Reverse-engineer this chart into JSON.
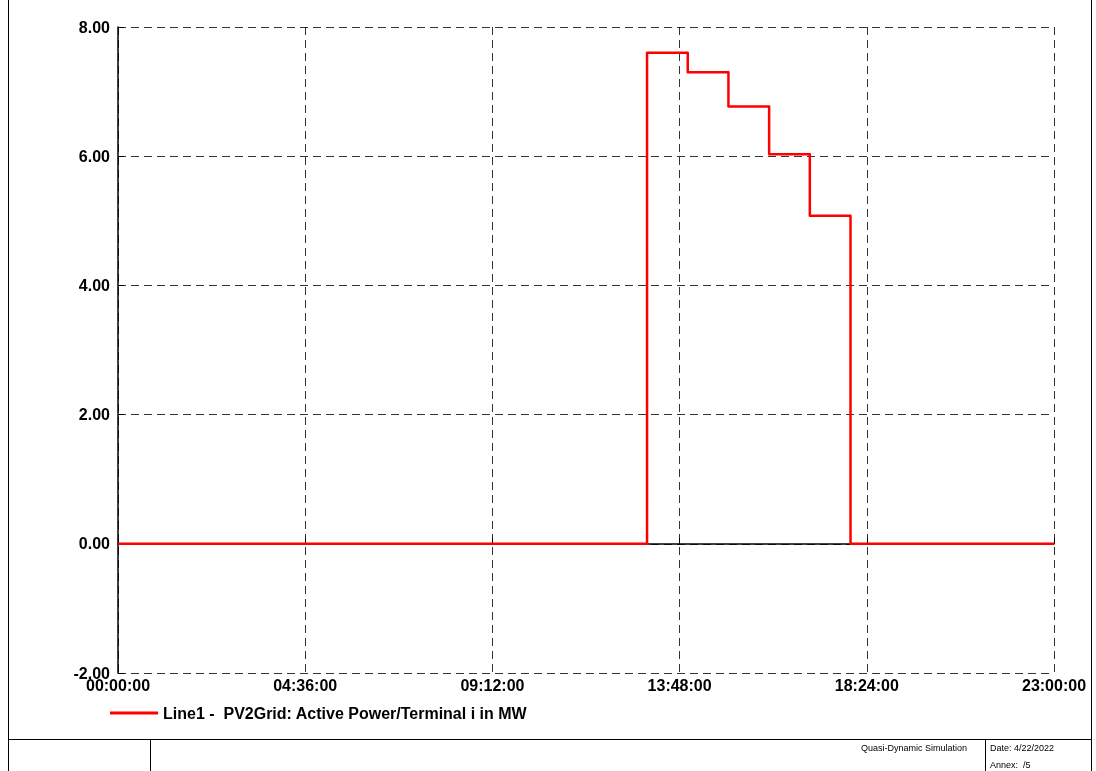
{
  "chart_data": {
    "type": "step",
    "x": [
      0,
      1,
      2,
      3,
      4,
      5,
      6,
      7,
      8,
      9,
      10,
      11,
      12,
      13,
      14,
      15,
      16,
      17,
      18,
      19,
      20,
      21,
      22,
      23
    ],
    "series": [
      {
        "name": "Line1 -  PV2Grid: Active Power/Terminal i in MW",
        "color": "#ff0000",
        "values": [
          0,
          0,
          0,
          0,
          0,
          0,
          0,
          0,
          0,
          0,
          0,
          0,
          0,
          7.6,
          7.3,
          6.77,
          6.03,
          5.08,
          0,
          0,
          0,
          0,
          0,
          0
        ]
      }
    ],
    "xlim": [
      0,
      23
    ],
    "xticks": [
      {
        "value": 0,
        "label": "00:00:00"
      },
      {
        "value": 4.6,
        "label": "04:36:00"
      },
      {
        "value": 9.2,
        "label": "09:12:00"
      },
      {
        "value": 13.8,
        "label": "13:48:00"
      },
      {
        "value": 18.4,
        "label": "18:24:00"
      },
      {
        "value": 23,
        "label": "23:00:00"
      }
    ],
    "ylim": [
      -2,
      8
    ],
    "yticks": [
      {
        "value": -2,
        "label": "-2.00"
      },
      {
        "value": 0,
        "label": "0.00"
      },
      {
        "value": 2,
        "label": "2.00"
      },
      {
        "value": 4,
        "label": "4.00"
      },
      {
        "value": 6,
        "label": "6.00"
      },
      {
        "value": 8,
        "label": "8.00"
      }
    ],
    "grid": true,
    "legend": "bottom",
    "marker": "none",
    "line_style": "solid",
    "annotations": [
      "Quasi-Dynamic Simulation",
      "Date: 4/22/2022",
      "Annex:  /5"
    ]
  }
}
